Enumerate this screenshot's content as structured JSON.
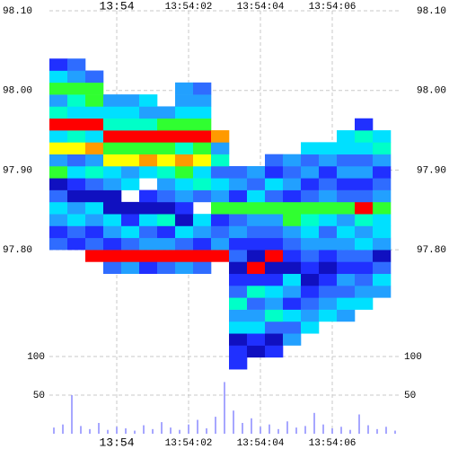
{
  "chart_data": {
    "type": "heatmap",
    "x_bins": [
      -1.875,
      -1.375,
      -0.875,
      -0.375,
      0.125,
      0.625,
      1.125,
      1.625,
      2.125,
      2.625,
      3.125,
      3.625,
      4.125,
      4.625,
      5.125,
      5.625,
      6.125,
      6.625,
      7.125,
      7.625
    ],
    "y_bins": [
      97.65,
      97.665,
      97.68,
      97.695,
      97.71,
      97.725,
      97.74,
      97.755,
      97.77,
      97.785,
      97.8,
      97.815,
      97.83,
      97.845,
      97.86,
      97.875,
      97.89,
      97.905,
      97.92,
      97.935,
      97.95,
      97.965,
      97.98,
      97.995,
      98.01,
      98.025,
      98.04
    ],
    "values": [
      [
        null,
        null,
        null,
        null,
        null,
        null,
        null,
        null,
        null,
        null,
        2,
        1,
        3,
        4,
        2,
        0,
        6,
        3,
        7,
        4,
        9,
        5,
        3,
        6,
        4,
        1
      ],
      [
        null,
        null,
        null,
        null,
        null,
        null,
        null,
        null,
        null,
        null,
        1,
        2,
        4,
        3,
        0,
        1,
        4,
        2,
        7,
        5,
        9,
        4,
        5,
        6,
        3,
        2
      ],
      [
        null,
        null,
        null,
        null,
        null,
        null,
        null,
        null,
        null,
        9,
        2,
        1,
        3,
        4,
        0,
        2,
        5,
        3,
        8,
        4,
        9,
        4,
        6,
        6,
        2,
        null
      ],
      [
        null,
        null,
        null,
        null,
        null,
        null,
        null,
        null,
        2,
        9,
        1,
        3,
        4,
        0,
        0,
        3,
        4,
        7,
        6,
        9,
        5,
        4,
        3,
        null,
        null,
        null
      ],
      [
        null,
        null,
        null,
        null,
        null,
        null,
        null,
        null,
        3,
        9,
        2,
        4,
        1,
        0,
        null,
        4,
        3,
        7,
        6,
        9,
        5,
        4,
        3,
        null,
        null,
        null
      ],
      [
        null,
        null,
        null,
        null,
        null,
        null,
        null,
        null,
        1,
        9,
        3,
        2,
        4,
        0,
        1,
        null,
        4,
        8,
        6,
        9,
        5,
        3,
        4,
        null,
        null,
        null
      ],
      [
        null,
        null,
        null,
        null,
        null,
        null,
        null,
        null,
        2,
        9,
        3,
        1,
        5,
        0,
        2,
        3,
        5,
        7,
        6,
        9,
        6,
        3,
        null,
        null,
        null,
        null
      ],
      [
        null,
        null,
        null,
        null,
        null,
        null,
        null,
        null,
        3,
        9,
        2,
        4,
        0,
        1,
        3,
        4,
        6,
        8,
        5,
        9,
        6,
        4,
        3,
        3,
        null,
        null
      ],
      [
        null,
        null,
        null,
        null,
        null,
        null,
        null,
        null,
        2,
        9,
        1,
        3,
        4,
        null,
        2,
        5,
        4,
        7,
        6,
        9,
        6,
        4,
        3,
        2,
        null,
        null
      ],
      [
        null,
        null,
        null,
        null,
        null,
        null,
        null,
        null,
        null,
        9,
        3,
        2,
        1,
        6,
        3,
        4,
        2,
        5,
        3,
        8,
        null,
        null,
        null,
        null,
        null,
        null
      ],
      [
        1,
        1,
        0,
        4,
        3,
        5,
        2,
        1,
        0,
        2,
        1,
        3,
        2,
        6,
        1,
        3,
        2,
        null,
        null,
        null,
        null,
        null,
        null,
        null,
        null,
        null
      ],
      [
        null,
        0,
        1,
        4,
        3,
        2,
        5,
        1,
        9,
        0,
        1,
        2,
        3,
        6,
        4,
        2,
        3,
        null,
        null,
        null,
        null,
        null,
        null,
        null,
        null,
        null
      ],
      [
        null,
        1,
        0,
        2,
        5,
        3,
        4,
        1,
        0,
        9,
        1,
        2,
        3,
        6,
        2,
        4,
        1,
        2,
        null,
        null,
        null,
        null,
        null,
        null,
        null,
        null
      ],
      [
        null,
        null,
        3,
        2,
        4,
        1,
        3,
        4,
        0,
        1,
        2,
        3,
        6,
        6,
        1,
        3,
        2,
        3,
        null,
        null,
        null,
        null,
        null,
        null,
        null,
        null
      ],
      [
        null,
        null,
        null,
        4,
        3,
        2,
        1,
        0,
        1,
        2,
        3,
        4,
        5,
        6,
        2,
        1,
        3,
        2,
        4,
        null,
        null,
        null,
        null,
        null,
        null,
        null
      ],
      [
        null,
        null,
        null,
        null,
        4,
        3,
        2,
        1,
        0,
        1,
        3,
        2,
        4,
        6,
        3,
        2,
        1,
        3,
        4,
        null,
        null,
        null,
        null,
        null,
        null,
        null
      ],
      [
        null,
        null,
        null,
        null,
        3,
        4,
        2,
        3,
        1,
        2,
        3,
        4,
        3,
        6,
        2,
        1,
        3,
        2,
        4,
        4,
        null,
        null,
        null,
        null,
        null,
        null
      ],
      [
        null,
        null,
        null,
        null,
        null,
        4,
        3,
        2,
        1,
        2,
        4,
        3,
        5,
        9,
        2,
        1,
        3,
        2,
        4,
        5,
        1,
        null,
        null,
        null,
        null,
        null
      ],
      [
        null,
        null,
        null,
        null,
        null,
        null,
        3,
        4,
        2,
        0,
        3,
        4,
        4,
        6,
        3,
        2,
        1,
        3,
        5,
        4,
        null,
        null,
        null,
        null,
        null,
        null
      ]
    ],
    "colors": [
      "#1010c0",
      "#2030ff",
      "#2f6cff",
      "#22a0ff",
      "#00e0ff",
      "#00ffc8",
      "#30ff30",
      "#ffff00",
      "#ff9a00",
      "#ff0000"
    ],
    "xlim": [
      -1.875,
      7.875
    ],
    "ylim": [
      97.569,
      98.1
    ],
    "y2lim": [
      0,
      548
    ],
    "xticks": [
      {
        "value": 0,
        "label": "13:54"
      },
      {
        "value": 2,
        "label": "13:54:02"
      },
      {
        "value": 4,
        "label": "13:54:04"
      },
      {
        "value": 6,
        "label": "13:54:06"
      }
    ],
    "yticks": [
      {
        "value": 97.8,
        "label": "97.80"
      },
      {
        "value": 97.9,
        "label": "97.90"
      },
      {
        "value": 98,
        "label": "98.00"
      },
      {
        "value": 98.1,
        "label": "98.10"
      }
    ],
    "y2ticks": [
      50,
      100
    ],
    "grid": true,
    "volume": {
      "type": "bar",
      "axis": "y2",
      "color": "#8a8aff",
      "x": [
        -1.75,
        -1.5,
        -1.25,
        -1,
        -0.75,
        -0.5,
        -0.25,
        0,
        0.25,
        0.5,
        0.75,
        1,
        1.25,
        1.5,
        1.75,
        2,
        2.25,
        2.5,
        2.75,
        3,
        3.25,
        3.5,
        3.75,
        4,
        4.25,
        4.5,
        4.75,
        5,
        5.25,
        5.5,
        5.75,
        6,
        6.25,
        6.5,
        6.75,
        7,
        7.25,
        7.5,
        7.75
      ],
      "values": [
        8,
        12,
        50,
        10,
        6,
        14,
        5,
        9,
        7,
        4,
        11,
        6,
        15,
        8,
        5,
        12,
        18,
        7,
        22,
        67,
        30,
        14,
        20,
        9,
        12,
        6,
        16,
        8,
        10,
        27,
        12,
        7,
        9,
        5,
        25,
        11,
        6,
        9,
        4
      ]
    }
  }
}
